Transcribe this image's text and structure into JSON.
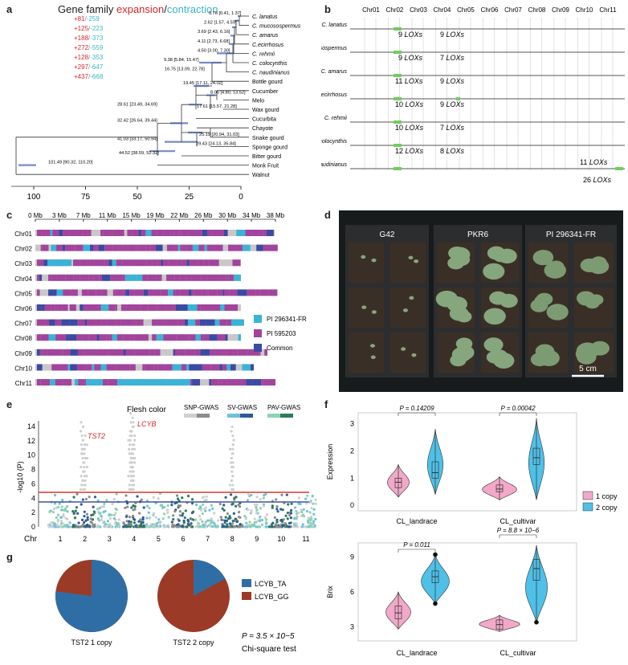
{
  "labels": {
    "a": "a",
    "b": "b",
    "c": "c",
    "d": "d",
    "e": "e",
    "f": "f",
    "g": "g"
  },
  "panel_a": {
    "title_prefix": "Gene family ",
    "title_expansion": "expansion",
    "title_sep": "/",
    "title_contraction": "contraction",
    "colors": {
      "expansion": "#d62728",
      "contraction": "#3ab6c6"
    },
    "changes": [
      {
        "exp": "+81",
        "con": "-259"
      },
      {
        "exp": "+125",
        "con": "-223"
      },
      {
        "exp": "+188",
        "con": "-373"
      },
      {
        "exp": "+272",
        "con": "-559"
      },
      {
        "exp": "+128",
        "con": "-353"
      },
      {
        "exp": "+297",
        "con": "-647"
      },
      {
        "exp": "+437",
        "con": "-668"
      }
    ],
    "taxa": [
      "C. lanatus",
      "C. mucosospermus",
      "C. amarus",
      "C.ecirrhosus",
      "C. rehmii",
      "C. colocynthis",
      "C. naudinianus",
      "Bottle gourd",
      "Cucumber",
      "Melo",
      "Wax gourd",
      "Cucurbita",
      "Chayote",
      "Snake gourd",
      "Sponge gourd",
      "Bitter gourd",
      "Monk Fruit",
      "Walnut"
    ],
    "node_ages": [
      "0.76 [0.41, 1.37]",
      "2.62 [1.57, 4.59]",
      "3.69 [2.43, 6.16]",
      "4.11 [2.73, 6.68]",
      "4.50 [3.00, 7.30]",
      "9.38 [5.84, 15.47]",
      "16.75 [13.09, 22.78]",
      "19.45 [17.11, 24.02]",
      "8.05 [4.80, 13.52]",
      "17.61 [15.57, 21.28]",
      "28.61 [23.49, 34.69]",
      "32.42 [26.64, 39.44]",
      "25.19 [20.94, 31.03]",
      "29.43 [24.13, 35.84]",
      "41.03 [33.17, 50.94]",
      "44.52 [38.59, 52.32]",
      "101.49 [90.32, 110.20]"
    ],
    "axis_ticks": [
      "100",
      "75",
      "50",
      "25",
      "0"
    ]
  },
  "panel_b": {
    "chromosomes": [
      "Chr01",
      "Chr02",
      "Chr03",
      "Chr04",
      "Chr05",
      "Chr06",
      "Chr07",
      "Chr08",
      "Chr09",
      "Chr10",
      "Chr11"
    ],
    "species": [
      "C. lanatus",
      "C. mucosospermus",
      "C. amarus",
      "C. ecirrhosus",
      "C. rehmii",
      "C. colocynthis",
      "C. naudinianus"
    ],
    "lox_labels": [
      {
        "num": "9",
        "suffix": " LOXs"
      },
      {
        "num": "9",
        "suffix": " LOXs"
      },
      {
        "num": "9",
        "suffix": " LOXs"
      },
      {
        "num": "7",
        "suffix": " LOXs"
      },
      {
        "num": "11",
        "suffix": " LOXs"
      },
      {
        "num": "9",
        "suffix": " LOXs"
      },
      {
        "num": "10",
        "suffix": " LOXs"
      },
      {
        "num": "9",
        "suffix": " LOXs"
      },
      {
        "num": "10",
        "suffix": " LOXs"
      },
      {
        "num": "7",
        "suffix": " LOXs"
      },
      {
        "num": "12",
        "suffix": " LOXs"
      },
      {
        "num": "8",
        "suffix": " LOXs"
      },
      {
        "num": "11",
        "suffix": " LOXs"
      },
      {
        "num": "26",
        "suffix": " LOXs"
      }
    ]
  },
  "panel_c": {
    "scale": [
      "0 Mb",
      "3 Mb",
      "7 Mb",
      "11 Mb",
      "15 Mb",
      "19 Mb",
      "22 Mb",
      "26 Mb",
      "30 Mb",
      "34 Mb",
      "38 Mb"
    ],
    "chromosomes": [
      "Chr01",
      "Chr02",
      "Chr03",
      "Chr04",
      "Chr05",
      "Chr06",
      "Chr07",
      "Chr08",
      "Chr09",
      "Chr10",
      "Chr11"
    ],
    "legend": [
      {
        "label": "PI 296341-FR",
        "color": "#3bb3d6"
      },
      {
        "label": "PI 595203",
        "color": "#a2449c"
      },
      {
        "label": "Common",
        "color": "#3b4aa3"
      }
    ]
  },
  "panel_d": {
    "genotypes": [
      "G42",
      "PKR6",
      "PI 296341-FR"
    ],
    "scale_bar": "5 cm"
  },
  "panel_e": {
    "title": "Flesh color",
    "legend": [
      "SNP-GWAS",
      "SV-GWAS",
      "PAV-GWAS"
    ],
    "legend_colors": [
      [
        "#cfcfcf",
        "#8c8c8c"
      ],
      [
        "#6ec3dc",
        "#2d5a9a"
      ],
      [
        "#8fd1b2",
        "#2e7a5a"
      ]
    ],
    "genes": [
      "TST2",
      "LCYB"
    ],
    "ylabel": "-log10 (P)",
    "yticks": [
      "0",
      "2",
      "4",
      "6",
      "8",
      "10",
      "12",
      "14"
    ],
    "xlabel": "Chr",
    "chromosomes": [
      "1",
      "2",
      "3",
      "4",
      "5",
      "6",
      "7",
      "8",
      "9",
      "10",
      "11"
    ]
  },
  "panel_f": {
    "top_ylabel": "Expression",
    "top_yticks": [
      "0",
      "1",
      "2",
      "3"
    ],
    "top_pvalues": [
      "P = 0.14209",
      "P = 0.00042"
    ],
    "bottom_ylabel": "Brix",
    "bottom_yticks": [
      "3",
      "6",
      "9"
    ],
    "bottom_pvalues": [
      "P = 0.011",
      "P = 8.8 × 10−6"
    ],
    "groups": [
      "CL_landrace",
      "CL_cultivar"
    ],
    "legend": [
      {
        "label": "1 copy",
        "color": "#f2a9c9"
      },
      {
        "label": "2 copy",
        "color": "#4fc0e8"
      }
    ]
  },
  "panel_g": {
    "pies": [
      {
        "label": "TST2 1 copy",
        "fraction_TA": 0.77
      },
      {
        "label": "TST2 2 copy",
        "fraction_TA": 0.17
      }
    ],
    "legend": [
      {
        "label": "LCYB_TA",
        "color": "#2f6ea5"
      },
      {
        "label": "LCYB_GG",
        "color": "#9b3a26"
      }
    ],
    "pvalue": "P = 3.5 × 10−5",
    "test": "Chi-square test"
  }
}
